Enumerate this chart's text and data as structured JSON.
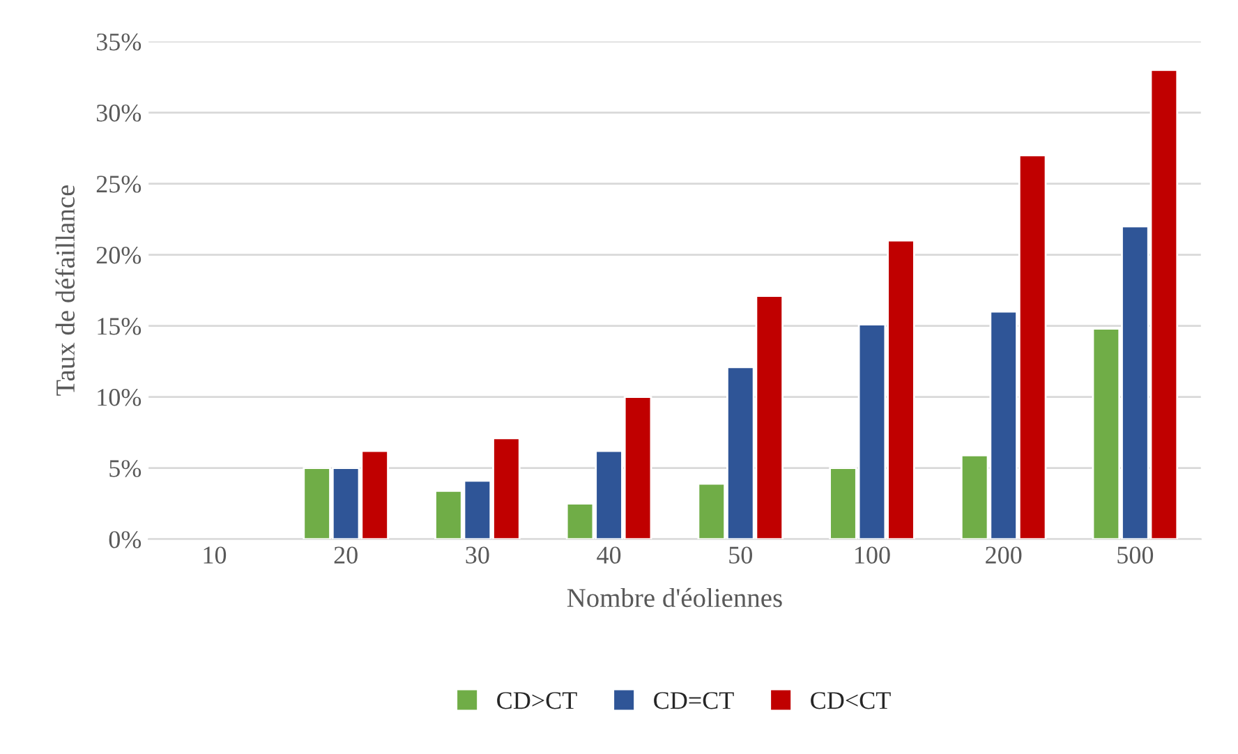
{
  "chart_data": {
    "type": "bar",
    "xlabel": "Nombre d'éoliennes",
    "ylabel": "Taux de défaillance",
    "categories": [
      "10",
      "20",
      "30",
      "40",
      "50",
      "100",
      "200",
      "500"
    ],
    "series": [
      {
        "name": "CD>CT",
        "color": "#70ad47",
        "values": [
          null,
          5,
          3.4,
          2.5,
          3.9,
          5,
          5.9,
          14.8
        ]
      },
      {
        "name": "CD=CT",
        "color": "#2f5597",
        "values": [
          null,
          5,
          4.1,
          6.2,
          12.1,
          15.1,
          16,
          22
        ]
      },
      {
        "name": "CD<CT",
        "color": "#c00000",
        "values": [
          null,
          6.2,
          7.1,
          10,
          17.1,
          21,
          27,
          33
        ]
      }
    ],
    "ylim": [
      0,
      35
    ],
    "yticks": [
      {
        "value": 0,
        "label": "0%"
      },
      {
        "value": 5,
        "label": "5%"
      },
      {
        "value": 10,
        "label": "10%"
      },
      {
        "value": 15,
        "label": "15%"
      },
      {
        "value": 20,
        "label": "20%"
      },
      {
        "value": 25,
        "label": "25%"
      },
      {
        "value": 30,
        "label": "30%"
      },
      {
        "value": 35,
        "label": "35%"
      }
    ],
    "grid": "y",
    "legend": "bottom"
  }
}
